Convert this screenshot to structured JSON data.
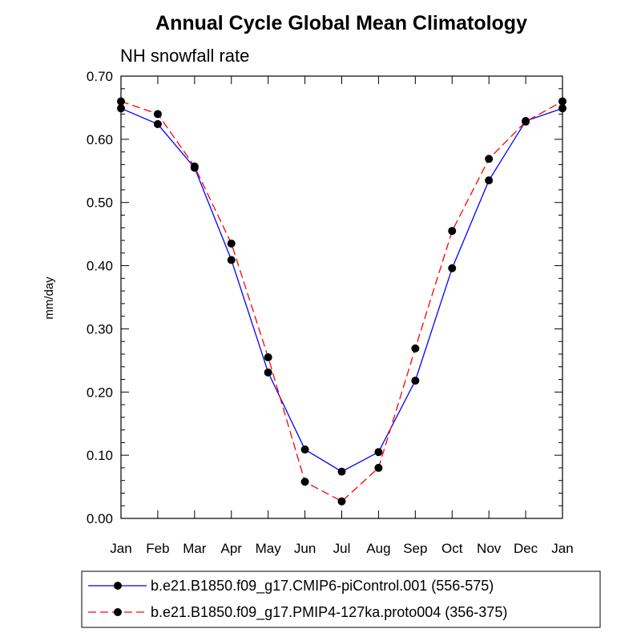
{
  "chart_data": {
    "type": "line",
    "title": "Annual Cycle Global Mean Climatology",
    "subtitle": "NH snowfall rate",
    "ylabel": "mm/day",
    "xlabel": "",
    "categories": [
      "Jan",
      "Feb",
      "Mar",
      "Apr",
      "May",
      "Jun",
      "Jul",
      "Aug",
      "Sep",
      "Oct",
      "Nov",
      "Dec",
      "Jan"
    ],
    "ylim": [
      0.0,
      0.7
    ],
    "yticks": [
      "0.00",
      "0.10",
      "0.20",
      "0.30",
      "0.40",
      "0.50",
      "0.60",
      "0.70"
    ],
    "grid": false,
    "legend_position": "bottom",
    "series": [
      {
        "name": "b.e21.B1850.f09_g17.CMIP6-piControl.001 (556-575)",
        "color": "#0000ff",
        "line_style": "solid",
        "values": [
          0.649,
          0.624,
          0.555,
          0.409,
          0.231,
          0.109,
          0.074,
          0.105,
          0.218,
          0.396,
          0.535,
          0.629,
          0.649
        ]
      },
      {
        "name": "b.e21.B1850.f09_g17.PMIP4-127ka.proto004 (356-375)",
        "color": "#ff0000",
        "line_style": "dashed",
        "values": [
          0.66,
          0.64,
          0.557,
          0.435,
          0.255,
          0.058,
          0.027,
          0.08,
          0.269,
          0.455,
          0.569,
          0.628,
          0.66
        ]
      }
    ]
  }
}
